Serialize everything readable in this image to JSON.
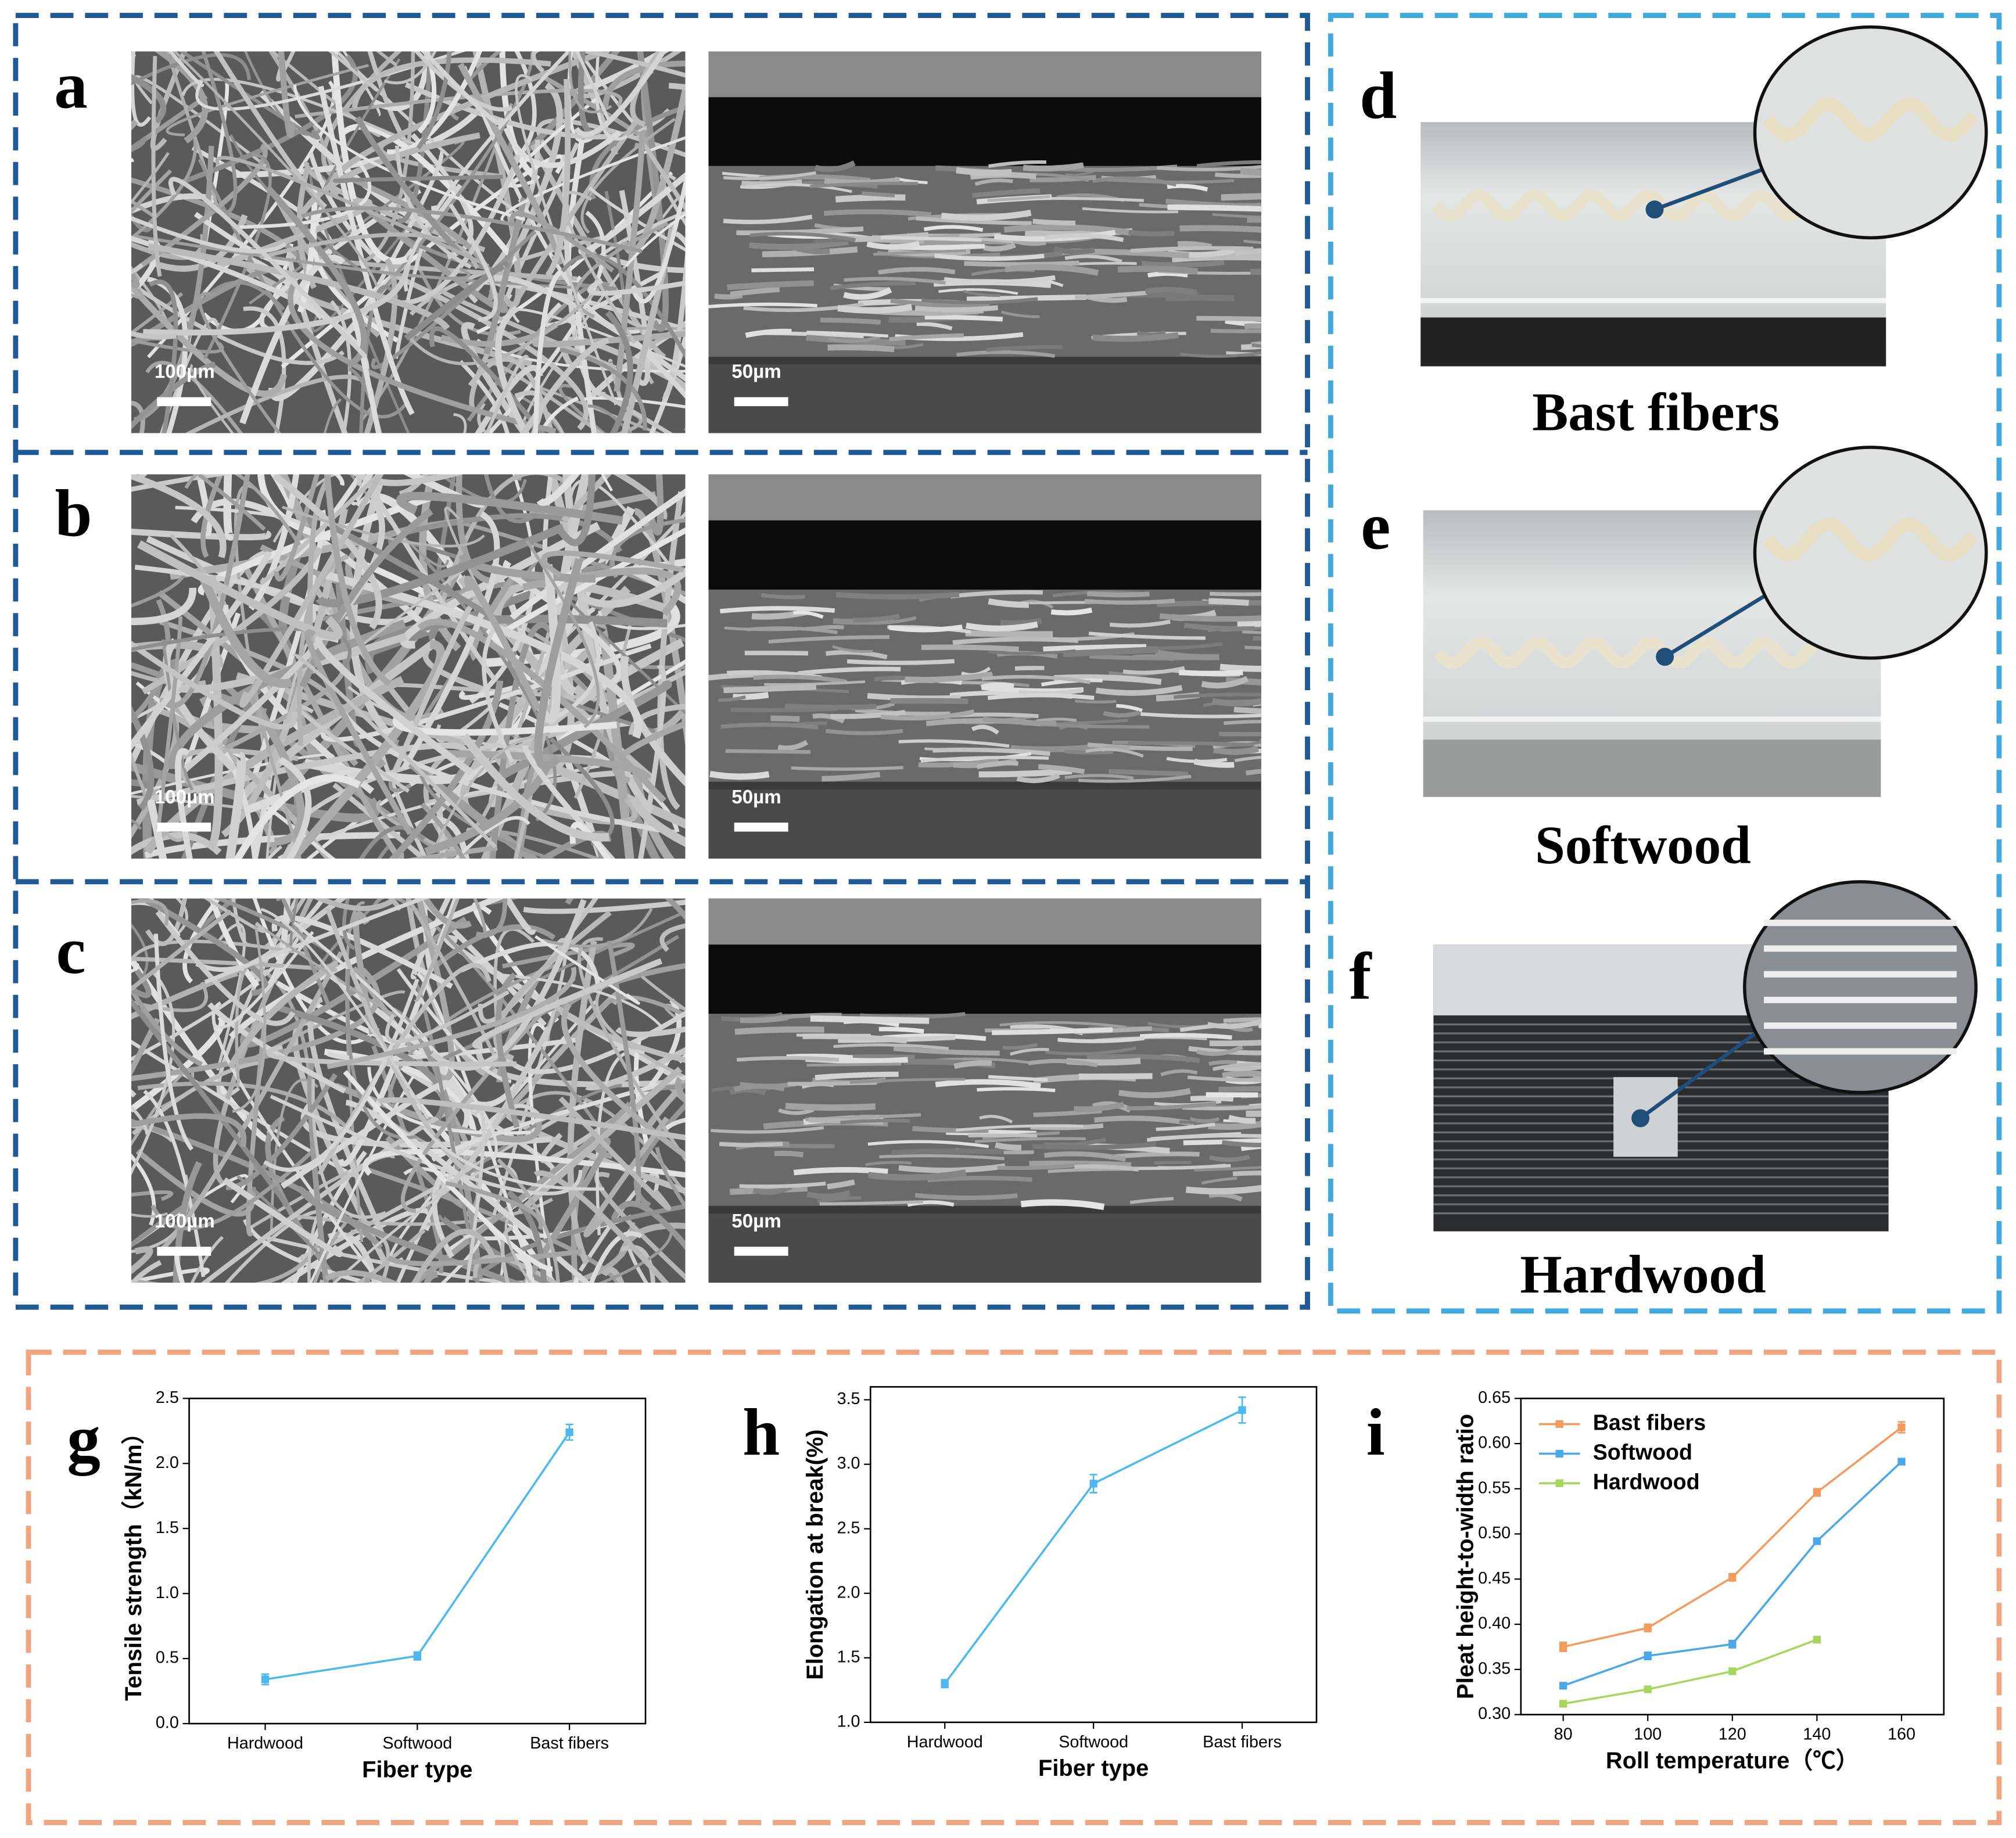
{
  "panels": [
    {
      "label": "a",
      "scale_bars": [
        "100µm",
        "50µm"
      ]
    },
    {
      "label": "b",
      "scale_bars": [
        "100µm",
        "50µm"
      ]
    },
    {
      "label": "c",
      "scale_bars": [
        "100µm",
        "50µm"
      ]
    }
  ],
  "photos": [
    {
      "label": "d",
      "caption": "Bast fibers"
    },
    {
      "label": "e",
      "caption": "Softwood"
    },
    {
      "label": "f",
      "caption": "Hardwood"
    }
  ],
  "chart_data": [
    {
      "type": "line",
      "panel_label": "g",
      "x_label": "Fiber type",
      "y_label": "Tensile strength（kN/m）",
      "categories": [
        "Hardwood",
        "Softwood",
        "Bast fibers"
      ],
      "series": [
        {
          "name": null,
          "color": "#4db8f0",
          "values": [
            0.34,
            0.52,
            2.24
          ],
          "errors": [
            0.04,
            0.03,
            0.06
          ]
        }
      ],
      "ylim": [
        0,
        2.5
      ],
      "yticks": [
        {
          "value": 0,
          "label": "0.0"
        },
        0.5,
        {
          "value": 1,
          "label": "1.0"
        },
        1.5,
        {
          "value": 2,
          "label": "2.0"
        },
        2.5
      ]
    },
    {
      "type": "line",
      "panel_label": "h",
      "x_label": "Fiber type",
      "y_label": "Elongation at break(%)",
      "categories": [
        "Hardwood",
        "Softwood",
        "Bast fibers"
      ],
      "series": [
        {
          "name": null,
          "color": "#4db8f0",
          "values": [
            1.3,
            2.85,
            3.42
          ],
          "errors": [
            0.03,
            0.07,
            0.1
          ]
        }
      ],
      "ylim": [
        1,
        3.6
      ],
      "yticks": [
        {
          "value": 1,
          "label": "1.0"
        },
        1.5,
        {
          "value": 2,
          "label": "2.0"
        },
        2.5,
        {
          "value": 3,
          "label": "3.0"
        },
        3.5
      ]
    },
    {
      "type": "line",
      "panel_label": "i",
      "x_label": "Roll temperature（℃）",
      "y_label": "Pleat height-to-width ratio",
      "x": [
        80,
        100,
        120,
        140,
        160
      ],
      "xlim": [
        70,
        170
      ],
      "xticks": [
        80,
        100,
        120,
        140,
        160
      ],
      "ylim": [
        0.3,
        0.65
      ],
      "yticks": [
        {
          "value": 0.3,
          "label": "0.30"
        },
        0.35,
        {
          "value": 0.4,
          "label": "0.40"
        },
        0.45,
        {
          "value": 0.5,
          "label": "0.50"
        },
        0.55,
        {
          "value": 0.6,
          "label": "0.60"
        },
        0.65
      ],
      "legend": "upper left",
      "series": [
        {
          "name": "Bast fibers",
          "color": "#f39a5e",
          "values": [
            0.375,
            0.396,
            0.452,
            0.546,
            0.618
          ],
          "errors": [
            0.005,
            0.004,
            0.004,
            0.004,
            0.006
          ]
        },
        {
          "name": "Softwood",
          "color": "#4aa8e8",
          "values": [
            0.332,
            0.365,
            0.378,
            0.492,
            0.58
          ],
          "errors": [
            0.003,
            0.004,
            0.004,
            0.003,
            0.003
          ]
        },
        {
          "name": "Hardwood",
          "color": "#a6d65c",
          "values": [
            0.312,
            0.328,
            0.348,
            0.383,
            null
          ],
          "errors": [
            0.002,
            0.003,
            0.002,
            0.002,
            null
          ]
        }
      ]
    }
  ]
}
